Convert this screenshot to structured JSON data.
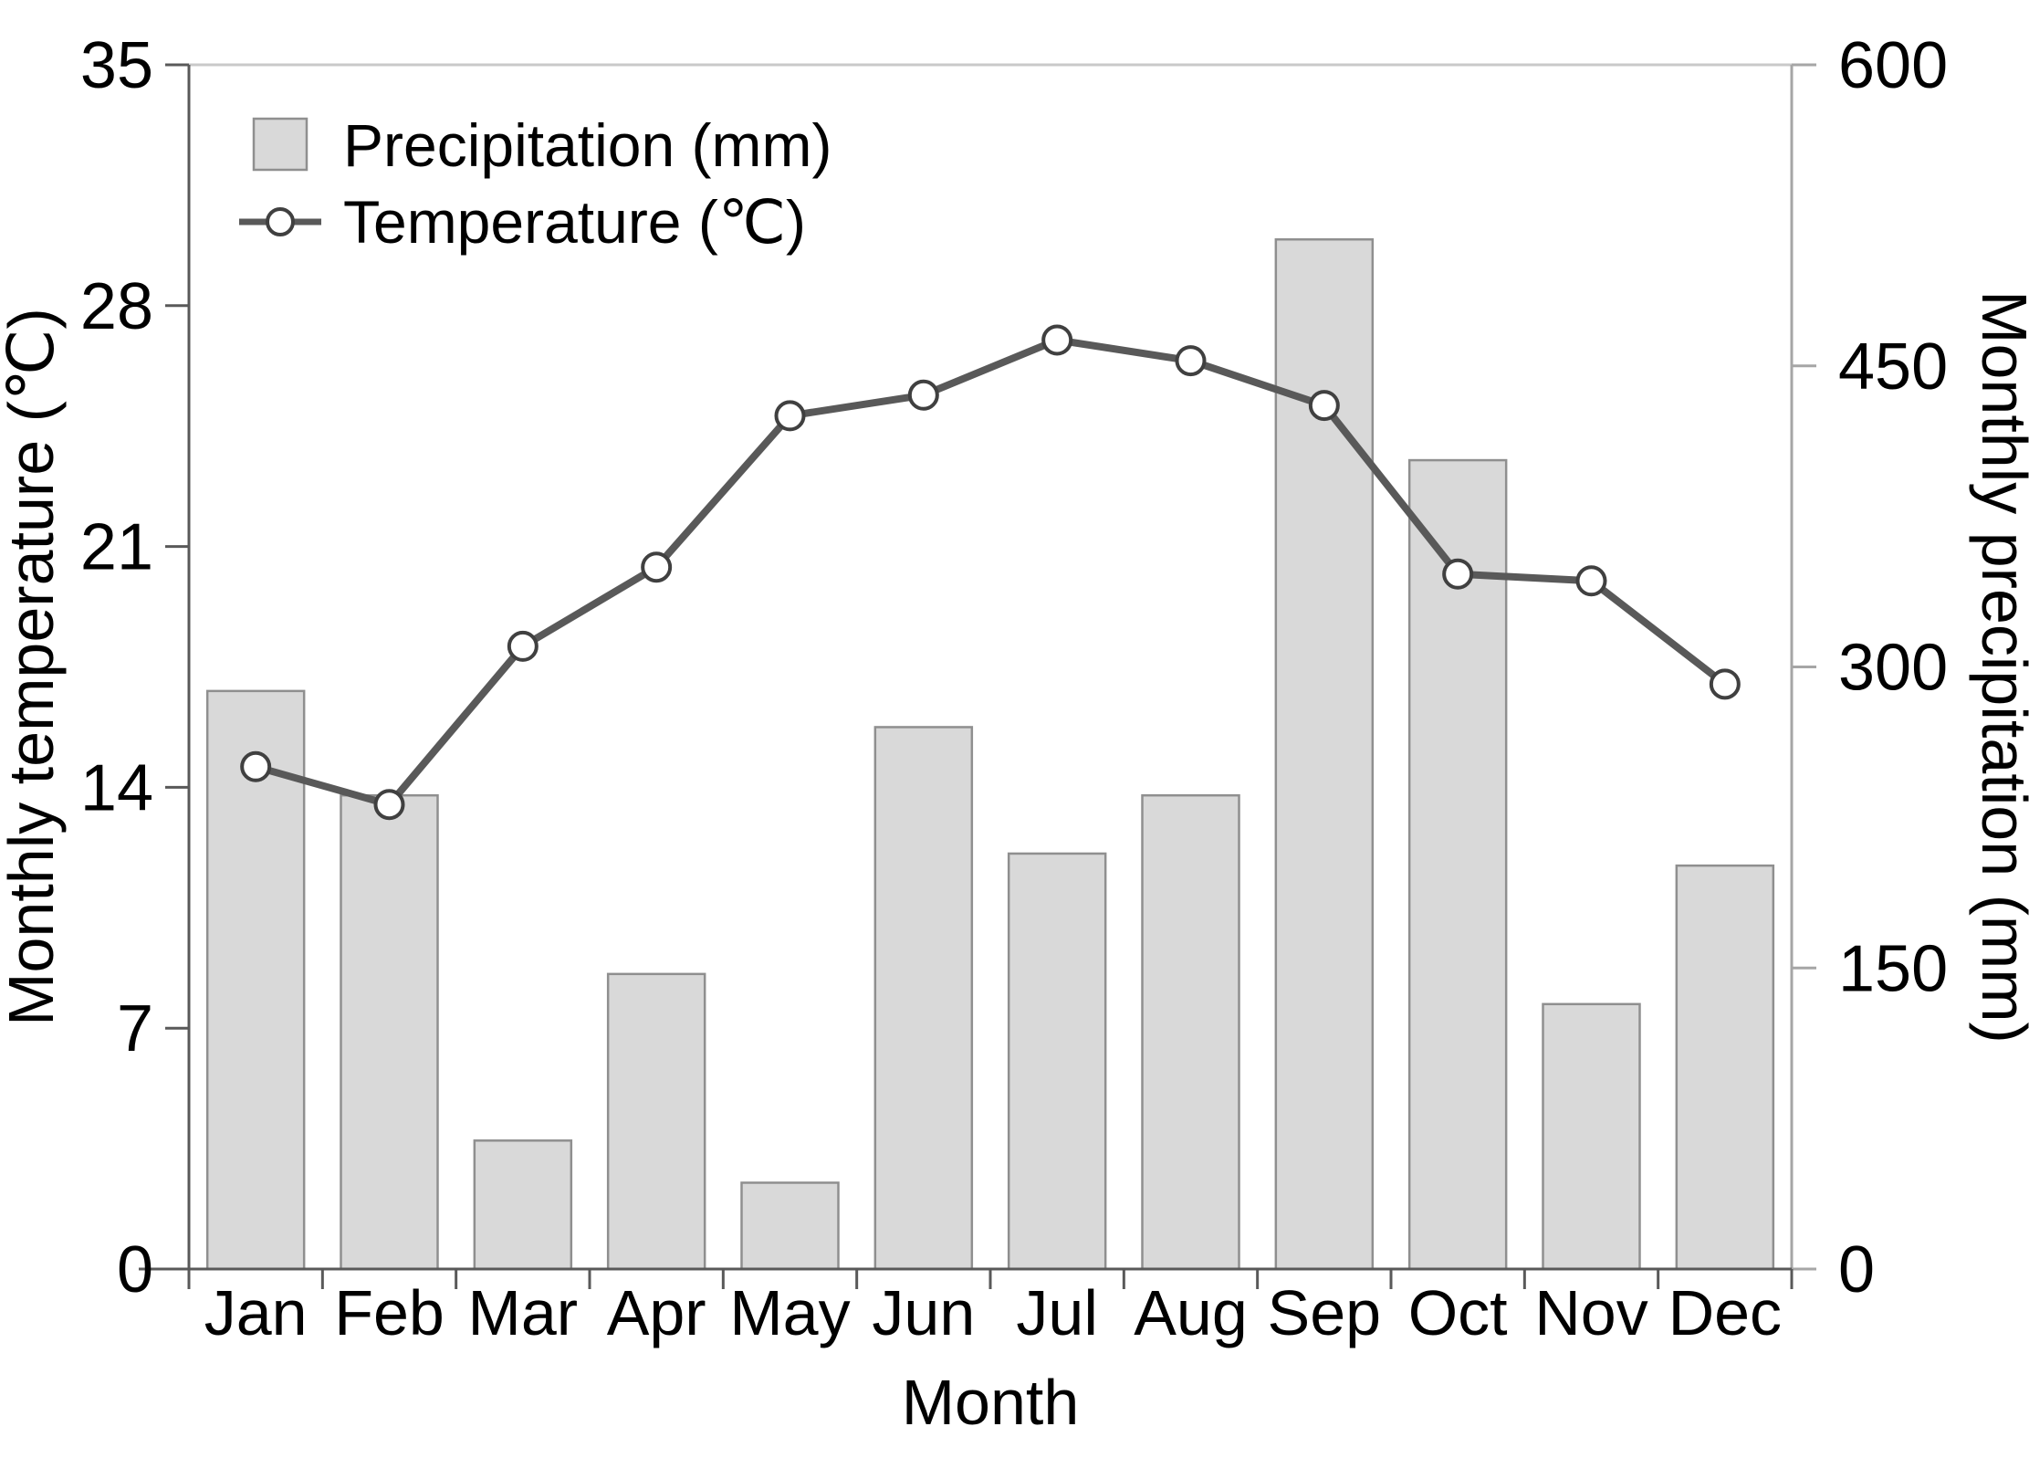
{
  "chart_data": {
    "type": "bar",
    "subtype": "combo-bar-line-dual-axis",
    "categories": [
      "Jan",
      "Feb",
      "Mar",
      "Apr",
      "May",
      "Jun",
      "Jul",
      "Aug",
      "Sep",
      "Oct",
      "Nov",
      "Dec"
    ],
    "series": [
      {
        "name": "Precipitation (mm)",
        "type": "bar",
        "axis": "right",
        "values": [
          288,
          236,
          64,
          147,
          43,
          270,
          207,
          236,
          513,
          403,
          132,
          201
        ],
        "fill": "#d9d9d9",
        "stroke": "#8f8f8f"
      },
      {
        "name": "Temperature (℃)",
        "type": "line",
        "axis": "left",
        "values": [
          14.6,
          13.5,
          18.1,
          20.4,
          24.8,
          25.4,
          27.0,
          26.4,
          25.1,
          20.2,
          20.0,
          17.0
        ],
        "line_color": "#595959",
        "marker": "open-circle",
        "marker_fill": "#ffffff",
        "marker_stroke": "#404040"
      }
    ],
    "title": "",
    "xlabel": "Month",
    "ylabel_left": "Monthly temperature (℃)",
    "ylabel_right": "Monthly precipitation (mm)",
    "ylim_left": [
      0,
      35
    ],
    "yticks_left": [
      0,
      7,
      14,
      21,
      28,
      35
    ],
    "ylim_right": [
      0,
      600
    ],
    "yticks_right": [
      0,
      150,
      300,
      450,
      600
    ],
    "grid": false,
    "legend": {
      "position": "top-left",
      "items": [
        "Precipitation (mm)",
        "Temperature (℃)"
      ]
    },
    "colors": {
      "axis_dark": "#595959",
      "axis_light": "#a6a6a6",
      "top_gridline": "#c9c9c9",
      "text": "#000000"
    }
  }
}
